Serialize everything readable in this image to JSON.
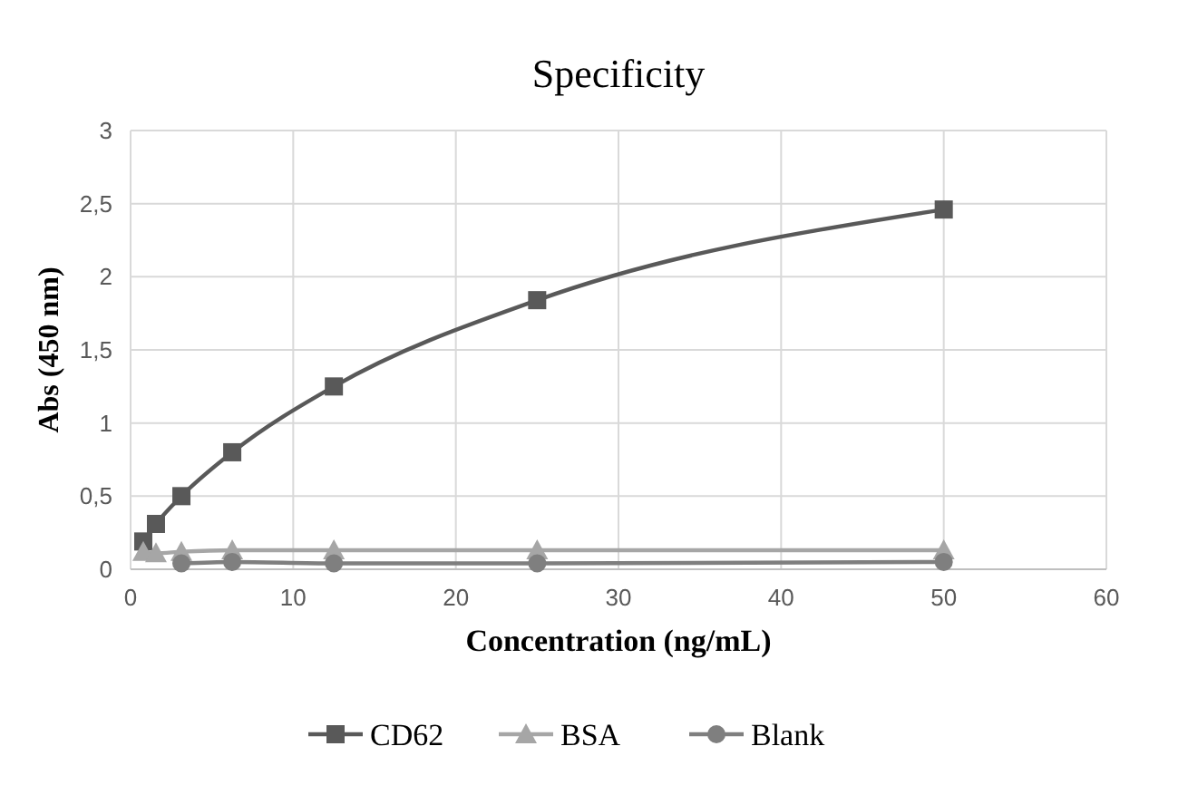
{
  "chart_data": {
    "type": "line",
    "title": "Specificity",
    "xlabel": "Concentration (ng/mL)",
    "ylabel": "Abs (450 nm)",
    "x": [
      0.78,
      1.56,
      3.125,
      6.25,
      12.5,
      25,
      50
    ],
    "series": [
      {
        "name": "CD62",
        "color": "#595959",
        "marker": "square",
        "values": [
          0.19,
          0.31,
          0.5,
          0.8,
          1.25,
          1.84,
          2.46
        ]
      },
      {
        "name": "BSA",
        "color": "#a6a6a6",
        "marker": "triangle",
        "values": [
          0.12,
          0.11,
          0.12,
          0.13,
          0.13,
          0.13,
          0.13
        ]
      },
      {
        "name": "Blank",
        "color": "#7f7f7f",
        "marker": "circle",
        "x": [
          3.125,
          6.25,
          12.5,
          25,
          50
        ],
        "values": [
          0.04,
          0.05,
          0.04,
          0.04,
          0.05
        ]
      }
    ],
    "xlim": [
      0,
      60
    ],
    "xticks": [
      0,
      10,
      20,
      30,
      40,
      50,
      60
    ],
    "ylim": [
      0,
      3
    ],
    "yticks": [
      0,
      {
        "value": 0.5,
        "label": "0,5"
      },
      1,
      {
        "value": 1.5,
        "label": "1,5"
      },
      2,
      {
        "value": 2.5,
        "label": "2,5"
      },
      3
    ],
    "grid": true,
    "legend": "bottom"
  }
}
